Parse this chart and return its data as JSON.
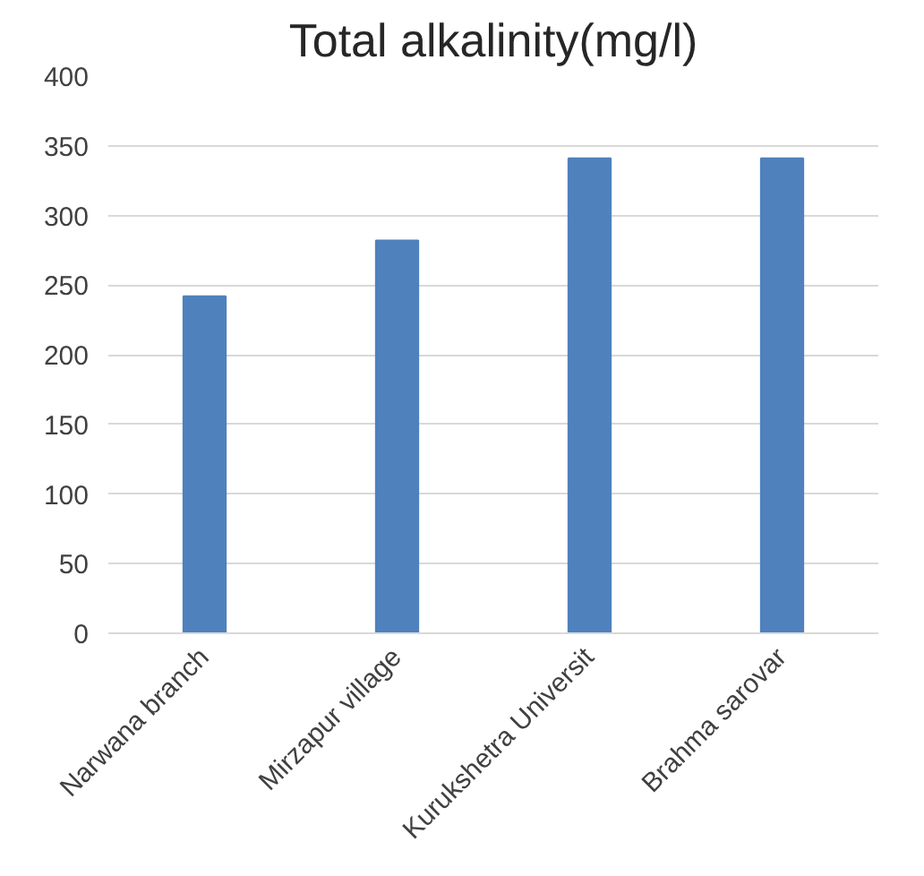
{
  "chart_data": {
    "type": "bar",
    "title": "Total alkalinity(mg/l)",
    "categories": [
      "Narwana branch",
      "Mirzapur village",
      "Kurukshetra Universit",
      "Brahma sarovar"
    ],
    "values": [
      242,
      282,
      341,
      341
    ],
    "color": "#4f81bd",
    "ylim": [
      0,
      400
    ],
    "yticks": [
      0,
      50,
      100,
      150,
      200,
      250,
      300,
      350,
      400
    ],
    "grid": "y"
  }
}
